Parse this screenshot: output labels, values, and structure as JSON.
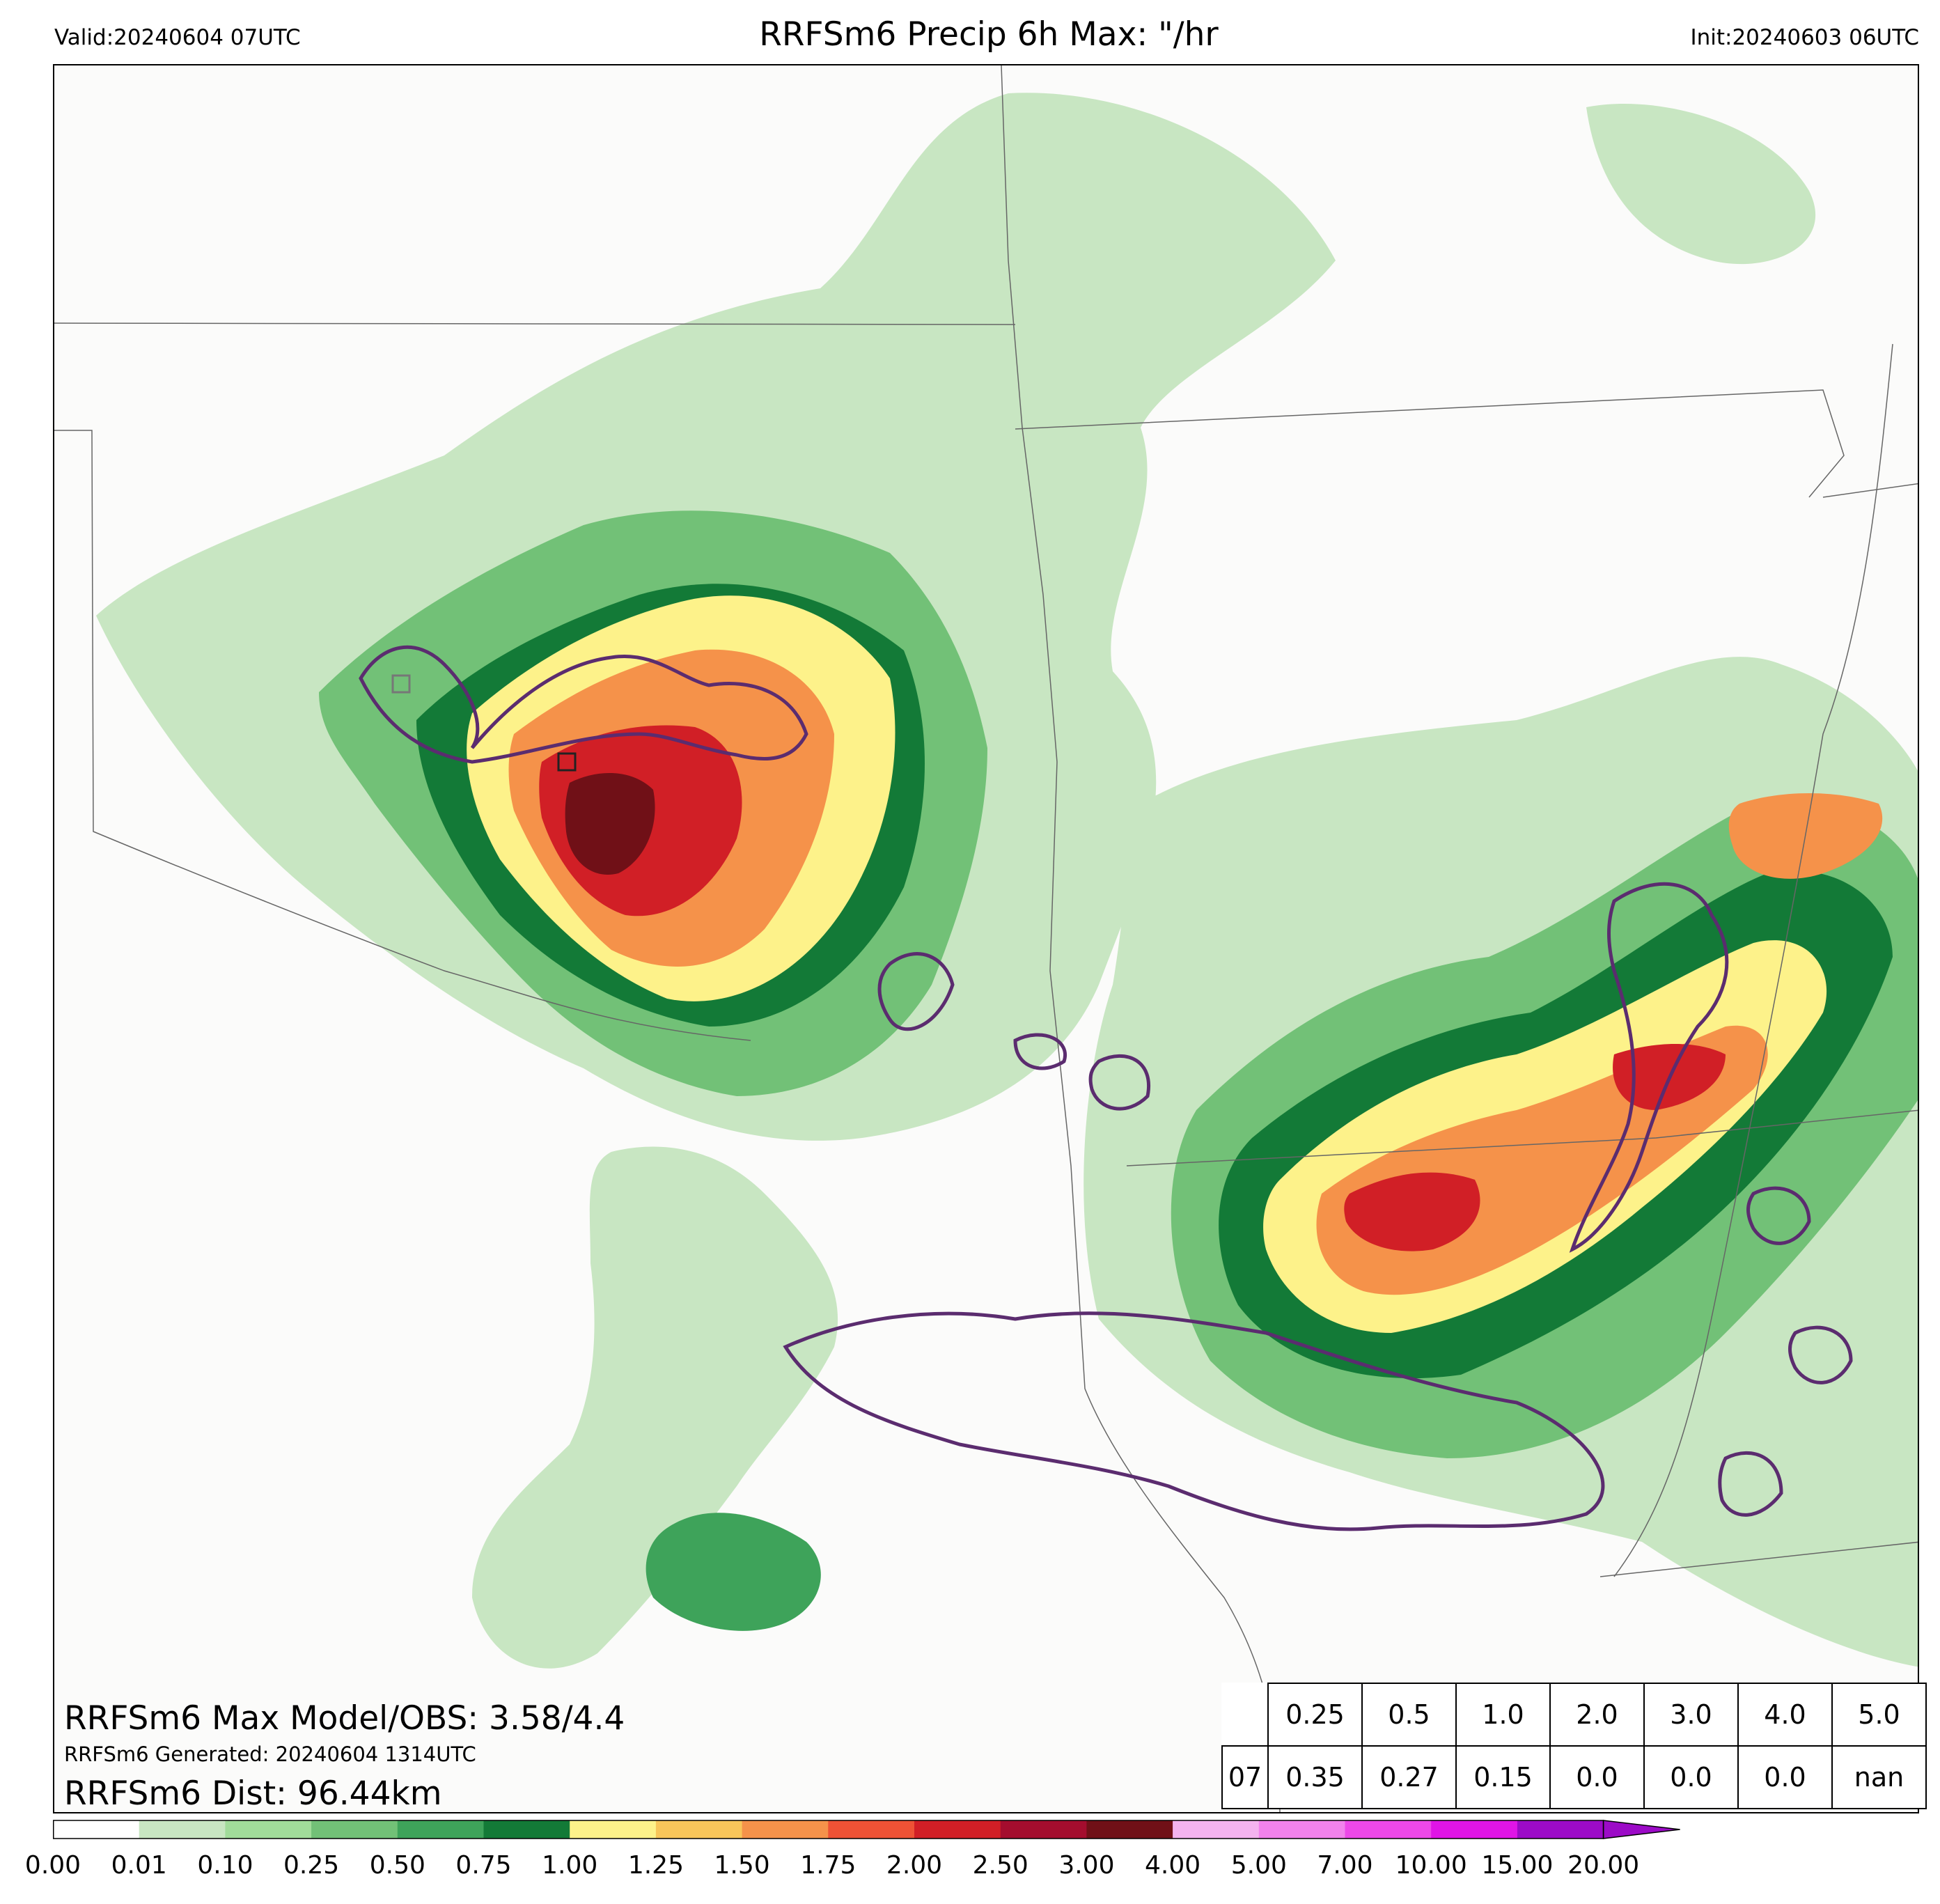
{
  "header": {
    "valid": "Valid:20240604 07UTC",
    "title": "RRFSm6 Precip 6h Max: \"/hr",
    "init": "Init:20240603 06UTC"
  },
  "annotations": {
    "max_model_obs": "RRFSm6 Max Model/OBS: 3.58/4.4",
    "generated": "RRFSm6 Generated: 20240604 1314UTC",
    "dist": "RRFSm6 Dist: 96.44km"
  },
  "stats_table": {
    "thresholds": [
      "0.25",
      "0.5",
      "1.0",
      "2.0",
      "3.0",
      "4.0",
      "5.0"
    ],
    "row_label": "07",
    "values": [
      "0.35",
      "0.27",
      "0.15",
      "0.0",
      "0.0",
      "0.0",
      "nan"
    ]
  },
  "colorbar": {
    "tick_labels": [
      "0.00",
      "0.01",
      "0.10",
      "0.25",
      "0.50",
      "0.75",
      "1.00",
      "1.25",
      "1.50",
      "1.75",
      "2.00",
      "2.50",
      "3.00",
      "4.00",
      "5.00",
      "7.00",
      "10.00",
      "15.00",
      "20.00"
    ],
    "colors": [
      "#ffffff",
      "#c8e6c2",
      "#a1dc9a",
      "#72c177",
      "#3ea35a",
      "#137a37",
      "#fdf28a",
      "#f8c65a",
      "#f5924a",
      "#ee5235",
      "#d11f26",
      "#a40d2e",
      "#701017",
      "#f4b3ef",
      "#f282ec",
      "#ed48e8",
      "#e015e6",
      "#9c0bc7"
    ],
    "extend_color": "#9c0bc7"
  },
  "map": {
    "boundary_color": "#666666",
    "obs_contour_color": "#5b2c6f"
  }
}
